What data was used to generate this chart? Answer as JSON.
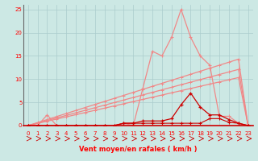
{
  "xlabel": "Vent moyen/en rafales ( km/h )",
  "xlim": [
    -0.5,
    23.5
  ],
  "ylim": [
    0,
    26
  ],
  "yticks": [
    0,
    5,
    10,
    15,
    20,
    25
  ],
  "xticks": [
    0,
    1,
    2,
    3,
    4,
    5,
    6,
    7,
    8,
    9,
    10,
    11,
    12,
    13,
    14,
    15,
    16,
    17,
    18,
    19,
    20,
    21,
    22,
    23
  ],
  "bg_color": "#cce8e4",
  "grid_color": "#aacccc",
  "line_color_light": "#f08888",
  "line_color_dark": "#cc0000",
  "series_rafales": [
    0,
    0,
    2.3,
    0,
    0,
    0,
    0,
    0,
    0,
    0,
    0.5,
    0,
    8,
    16,
    15,
    19,
    25,
    19,
    15,
    13,
    2,
    2,
    0.5,
    0
  ],
  "series_linear1": [
    0,
    0.65,
    1.3,
    1.95,
    2.6,
    3.25,
    3.9,
    4.55,
    5.2,
    5.85,
    6.5,
    7.15,
    7.8,
    8.45,
    9.1,
    9.75,
    10.4,
    11.05,
    11.7,
    12.35,
    13.0,
    13.65,
    14.3,
    0
  ],
  "series_linear2": [
    0,
    0.55,
    1.1,
    1.65,
    2.2,
    2.75,
    3.3,
    3.85,
    4.4,
    4.95,
    5.5,
    6.05,
    6.6,
    7.15,
    7.7,
    8.25,
    8.8,
    9.35,
    9.9,
    10.45,
    11.0,
    11.55,
    12.1,
    0
  ],
  "series_linear3": [
    0,
    0.47,
    0.94,
    1.41,
    1.88,
    2.35,
    2.82,
    3.29,
    3.76,
    4.23,
    4.7,
    5.17,
    5.64,
    6.11,
    6.58,
    7.05,
    7.52,
    7.99,
    8.46,
    8.93,
    9.4,
    9.87,
    10.34,
    0
  ],
  "series_moyen": [
    0,
    0,
    0,
    0,
    0,
    0,
    0,
    0,
    0,
    0,
    0.5,
    0.5,
    1,
    1,
    1,
    1.5,
    4.5,
    7,
    4,
    2.3,
    2.3,
    1.3,
    0.5,
    0
  ],
  "series_bottom": [
    0,
    0,
    0,
    0,
    0,
    0,
    0,
    0,
    0,
    0,
    0.5,
    0.5,
    0.5,
    0.5,
    0.5,
    0.5,
    0.5,
    0.5,
    0.5,
    1.5,
    1.5,
    0.7,
    0.5,
    0
  ],
  "arrows_x": [
    0,
    1,
    2,
    3,
    4,
    5,
    6,
    7,
    8,
    9,
    10,
    11,
    12,
    13,
    14,
    15,
    16,
    17,
    18,
    19,
    20,
    21,
    22,
    23
  ]
}
